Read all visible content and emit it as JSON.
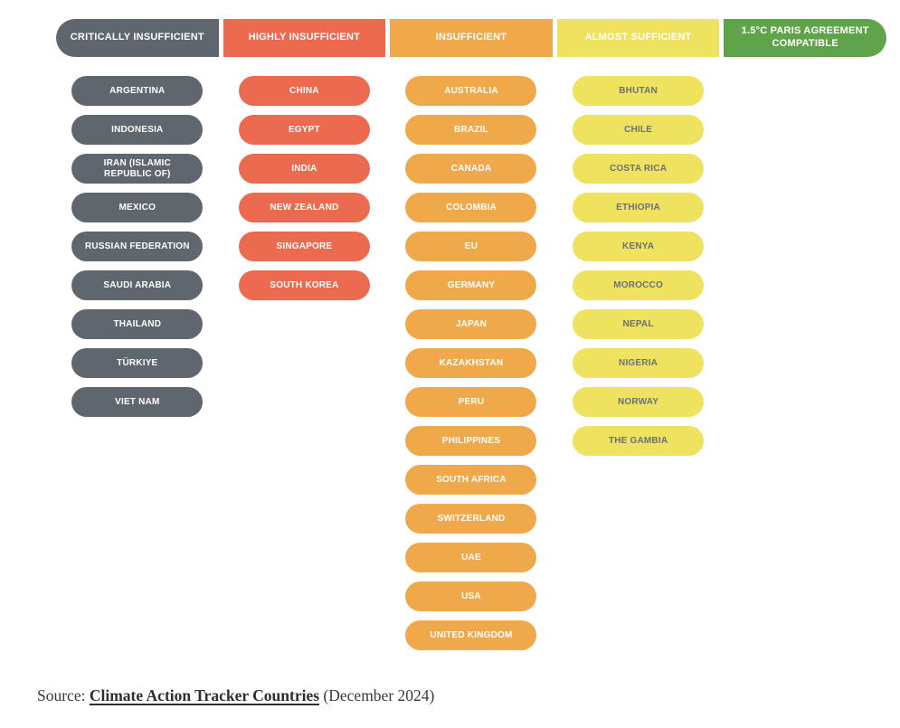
{
  "chart_data": {
    "type": "table",
    "title": "",
    "legend_position": "top",
    "columns": [
      {
        "label": "CRITICALLY INSUFFICIENT",
        "color": "#5F666D",
        "header_text_color": "#FFFFFF",
        "pill_text_color": "#FFFFFF",
        "countries": [
          "ARGENTINA",
          "INDONESIA",
          "IRAN (ISLAMIC REPUBLIC OF)",
          "MEXICO",
          "RUSSIAN FEDERATION",
          "SAUDI ARABIA",
          "THAILAND",
          "TÜRKIYE",
          "VIET NAM"
        ]
      },
      {
        "label": "HIGHLY INSUFFICIENT",
        "color": "#EC6A50",
        "header_text_color": "#FFFFFF",
        "pill_text_color": "#FFFFFF",
        "countries": [
          "CHINA",
          "EGYPT",
          "INDIA",
          "NEW ZEALAND",
          "SINGAPORE",
          "SOUTH KOREA"
        ]
      },
      {
        "label": "INSUFFICIENT",
        "color": "#EFA94B",
        "header_text_color": "#FFFFFF",
        "pill_text_color": "#FFFFFF",
        "countries": [
          "AUSTRALIA",
          "BRAZIL",
          "CANADA",
          "COLOMBIA",
          "EU",
          "GERMANY",
          "JAPAN",
          "KAZAKHSTAN",
          "PERU",
          "PHILIPPINES",
          "SOUTH AFRICA",
          "SWITZERLAND",
          "UAE",
          "USA",
          "UNITED KINGDOM"
        ]
      },
      {
        "label": "ALMOST SUFFICIENT",
        "color": "#EFE25F",
        "header_text_color": "#FFFFFF",
        "pill_text_color": "#6B7077",
        "countries": [
          "BHUTAN",
          "CHILE",
          "COSTA RICA",
          "ETHIOPIA",
          "KENYA",
          "MOROCCO",
          "NEPAL",
          "NIGERIA",
          "NORWAY",
          "THE GAMBIA"
        ]
      },
      {
        "label": "1.5°C PARIS AGREEMENT COMPATIBLE",
        "color": "#5FA44A",
        "header_text_color": "#FFFFFF",
        "pill_text_color": "#FFFFFF",
        "countries": []
      }
    ]
  },
  "source": {
    "prefix": "Source: ",
    "link_text": "Climate Action Tracker Countries",
    "suffix": " (December 2024)"
  }
}
